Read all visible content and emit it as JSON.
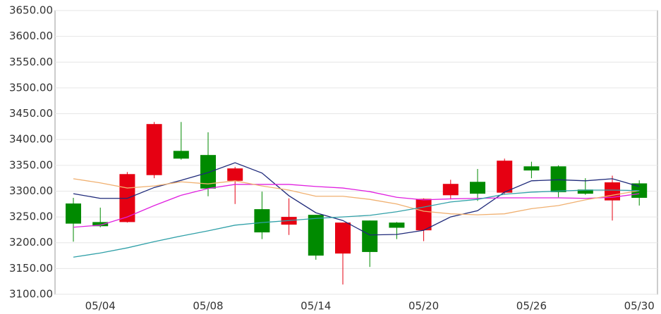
{
  "chart_data": {
    "type": "candlestick",
    "categories": [
      null,
      "05/04",
      null,
      null,
      null,
      "05/08",
      null,
      null,
      null,
      "05/14",
      null,
      null,
      null,
      "05/20",
      null,
      null,
      null,
      "05/26",
      null,
      null,
      null,
      "05/30"
    ],
    "open": [
      3276,
      3240,
      3240,
      3331,
      3378,
      3370,
      3320,
      3265,
      3235,
      3254,
      3179,
      3243,
      3239,
      3224,
      3292,
      3318,
      3297,
      3348,
      3348,
      3303,
      3282,
      3315
    ],
    "high": [
      3287,
      3268,
      3337,
      3434,
      3434,
      3414,
      3347,
      3299,
      3286,
      3254,
      3239,
      3243,
      3240,
      3286,
      3322,
      3343,
      3363,
      3357,
      3350,
      3325,
      3330,
      3321
    ],
    "low": [
      3202,
      3230,
      3239,
      3325,
      3361,
      3290,
      3275,
      3207,
      3215,
      3167,
      3119,
      3153,
      3207,
      3203,
      3284,
      3281,
      3293,
      3325,
      3288,
      3293,
      3243,
      3272
    ],
    "close": [
      3237,
      3232,
      3333,
      3430,
      3363,
      3305,
      3344,
      3220,
      3250,
      3175,
      3239,
      3182,
      3229,
      3285,
      3314,
      3295,
      3359,
      3340,
      3298,
      3295,
      3317,
      3287
    ],
    "up_color": "#e60012",
    "down_color": "#008a00",
    "moving_averages": [
      {
        "color": "#1f2a7a",
        "values": [
          3295,
          3286,
          3286,
          3307,
          3321,
          3336,
          3355,
          3335,
          3291,
          3258,
          3243,
          3215,
          3216,
          3224,
          3250,
          3262,
          3298,
          3320,
          3322,
          3320,
          3324,
          3309
        ]
      },
      {
        "color": "#e020e0",
        "values": [
          3230,
          3234,
          3250,
          3272,
          3292,
          3305,
          3313,
          3313,
          3313,
          3309,
          3306,
          3299,
          3288,
          3283,
          3285,
          3286,
          3287,
          3287,
          3287,
          3286,
          3288,
          3295
        ]
      },
      {
        "color": "#f0b070",
        "values": [
          3324,
          3316,
          3306,
          3310,
          3318,
          3314,
          3320,
          3310,
          3302,
          3290,
          3290,
          3284,
          3275,
          3261,
          3256,
          3254,
          3256,
          3266,
          3272,
          3283,
          3292,
          3301
        ]
      },
      {
        "color": "#30a0a8",
        "values": [
          3172,
          3180,
          3190,
          3202,
          3213,
          3223,
          3234,
          3239,
          3243,
          3247,
          3250,
          3253,
          3260,
          3269,
          3279,
          3284,
          3294,
          3298,
          3300,
          3302,
          3302,
          3301
        ]
      }
    ],
    "ylim": [
      3100,
      3650
    ],
    "yticks": [
      {
        "value": 3100,
        "label": "3100.00"
      },
      {
        "value": 3150,
        "label": "3150.00"
      },
      {
        "value": 3200,
        "label": "3200.00"
      },
      {
        "value": 3250,
        "label": "3250.00"
      },
      {
        "value": 3300,
        "label": "3300.00"
      },
      {
        "value": 3350,
        "label": "3350.00"
      },
      {
        "value": 3400,
        "label": "3400.00"
      },
      {
        "value": 3450,
        "label": "3450.00"
      },
      {
        "value": 3500,
        "label": "3500.00"
      },
      {
        "value": 3550,
        "label": "3550.00"
      },
      {
        "value": 3600,
        "label": "3600.00"
      },
      {
        "value": 3650,
        "label": "3650.00"
      }
    ],
    "grid": true
  }
}
